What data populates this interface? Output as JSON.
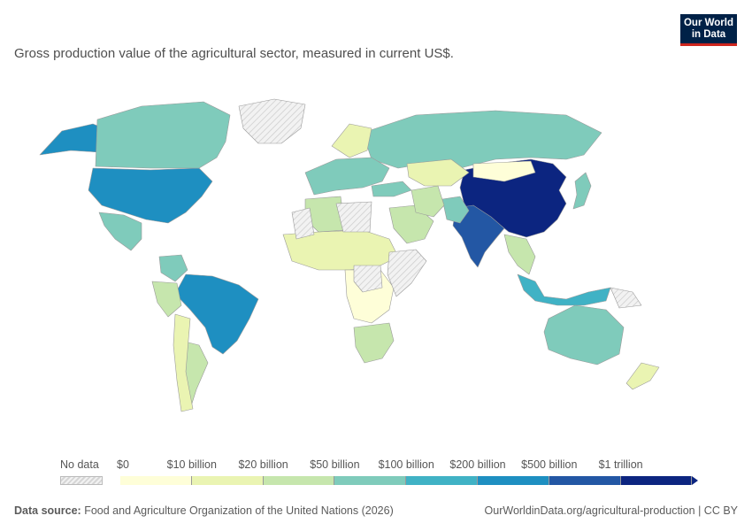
{
  "subtitle": "Gross production value of the agricultural sector, measured in current US$.",
  "logo": {
    "line1": "Our World",
    "line2": "in Data"
  },
  "legend": {
    "no_data_label": "No data",
    "labels": [
      "$0",
      "$10 billion",
      "$20 billion",
      "$50 billion",
      "$100 billion",
      "$200 billion",
      "$500 billion",
      "$1 trillion"
    ],
    "colors": [
      "#fefed8",
      "#eaf4b2",
      "#c6e6ad",
      "#7fcbbb",
      "#40b2c5",
      "#1e8fc1",
      "#2357a4",
      "#0c2580"
    ]
  },
  "map_regions": [
    {
      "name": "China",
      "bin": 7
    },
    {
      "name": "India",
      "bin": 6
    },
    {
      "name": "United States",
      "bin": 5
    },
    {
      "name": "Brazil",
      "bin": 5
    },
    {
      "name": "Alaska",
      "bin": 5
    },
    {
      "name": "Indonesia",
      "bin": 4
    },
    {
      "name": "Mexico",
      "bin": 3
    },
    {
      "name": "Canada",
      "bin": 3
    },
    {
      "name": "Russia",
      "bin": 3
    },
    {
      "name": "Australia",
      "bin": 3
    },
    {
      "name": "Pakistan",
      "bin": 3
    },
    {
      "name": "Turkey",
      "bin": 3
    },
    {
      "name": "Japan",
      "bin": 3
    },
    {
      "name": "Argentina",
      "bin": 2
    },
    {
      "name": "Nigeria",
      "bin": 3
    },
    {
      "name": "Kazakhstan",
      "bin": 1
    },
    {
      "name": "Mongolia",
      "bin": 0
    },
    {
      "name": "Sub-Saharan Africa",
      "bin": 1
    },
    {
      "name": "Central Africa",
      "bin": 0
    },
    {
      "name": "Southern Africa",
      "bin": 2
    },
    {
      "name": "Saudi Arabia",
      "bin": 2
    },
    {
      "name": "Iran",
      "bin": 2
    },
    {
      "name": "Algeria",
      "bin": 2
    },
    {
      "name": "Europe",
      "bin": 3
    },
    {
      "name": "Scandinavia",
      "bin": 1
    },
    {
      "name": "Southeast Asia",
      "bin": 2
    },
    {
      "name": "Colombia",
      "bin": 3
    },
    {
      "name": "Peru",
      "bin": 2
    },
    {
      "name": "Andes",
      "bin": 1
    },
    {
      "name": "New Zealand",
      "bin": 1
    },
    {
      "name": "Greenland",
      "bin": -1
    },
    {
      "name": "Sahara",
      "bin": -1
    },
    {
      "name": "Horn of Africa",
      "bin": -1
    },
    {
      "name": "Sudan",
      "bin": -1
    },
    {
      "name": "Afghanistan",
      "bin": -1
    },
    {
      "name": "Papua New Guinea",
      "bin": -1
    }
  ],
  "footer": {
    "source_label": "Data source:",
    "source_text": "Food and Agriculture Organization of the United Nations (2026)",
    "url_text": "OurWorldinData.org/agricultural-production | CC BY"
  }
}
